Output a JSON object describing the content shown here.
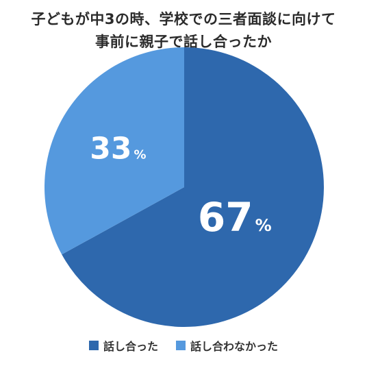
{
  "title_lines": [
    "子どもが中3の時、学校での三者面談に向けて",
    "事前に親子で話し合ったか"
  ],
  "chart_data": {
    "type": "pie",
    "title": "子どもが中3の時、学校での三者面談に向けて事前に親子で話し合ったか",
    "slices": [
      {
        "label": "話し合った",
        "value": 67,
        "display": "67",
        "unit": "%",
        "color": "#2e68ad"
      },
      {
        "label": "話し合わなかった",
        "value": 33,
        "display": "33",
        "unit": "%",
        "color": "#5599de"
      }
    ],
    "legend_placement": "bottom"
  }
}
